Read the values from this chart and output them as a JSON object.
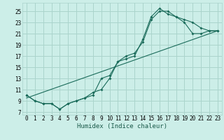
{
  "xlabel": "Humidex (Indice chaleur)",
  "bg_color": "#cceee8",
  "grid_color": "#aad4cc",
  "line_color": "#1a6b5a",
  "xlim": [
    -0.5,
    23.5
  ],
  "ylim": [
    6.5,
    26.5
  ],
  "xticks": [
    0,
    1,
    2,
    3,
    4,
    5,
    6,
    7,
    8,
    9,
    10,
    11,
    12,
    13,
    14,
    15,
    16,
    17,
    18,
    19,
    20,
    21,
    22,
    23
  ],
  "yticks": [
    7,
    9,
    11,
    13,
    15,
    17,
    19,
    21,
    23,
    25
  ],
  "line1_x": [
    0,
    1,
    2,
    3,
    4,
    5,
    6,
    7,
    8,
    9,
    10,
    11,
    12,
    13,
    14,
    15,
    16,
    17,
    18,
    19,
    20,
    21,
    22,
    23
  ],
  "line1_y": [
    10,
    9,
    8.5,
    8.5,
    7.5,
    8.5,
    9,
    9.5,
    10,
    13,
    13.5,
    16,
    16.5,
    17,
    20,
    24,
    25.5,
    24.5,
    24,
    23.5,
    23,
    22,
    21.5,
    21.5
  ],
  "line2_x": [
    0,
    1,
    2,
    3,
    4,
    5,
    6,
    7,
    8,
    9,
    10,
    11,
    12,
    13,
    14,
    15,
    16,
    17,
    18,
    19,
    20,
    21,
    22,
    23
  ],
  "line2_y": [
    10,
    9,
    8.5,
    8.5,
    7.5,
    8.5,
    9,
    9.5,
    10.5,
    11,
    13,
    16,
    17,
    17.5,
    19.5,
    23.5,
    25,
    25,
    24,
    23,
    21,
    21,
    21.5,
    21.5
  ],
  "line3_x": [
    0,
    23
  ],
  "line3_y": [
    9.5,
    21.5
  ],
  "xlabel_fontsize": 6.5,
  "tick_fontsize": 5.5,
  "marker_size": 2.0,
  "line_width": 0.8
}
